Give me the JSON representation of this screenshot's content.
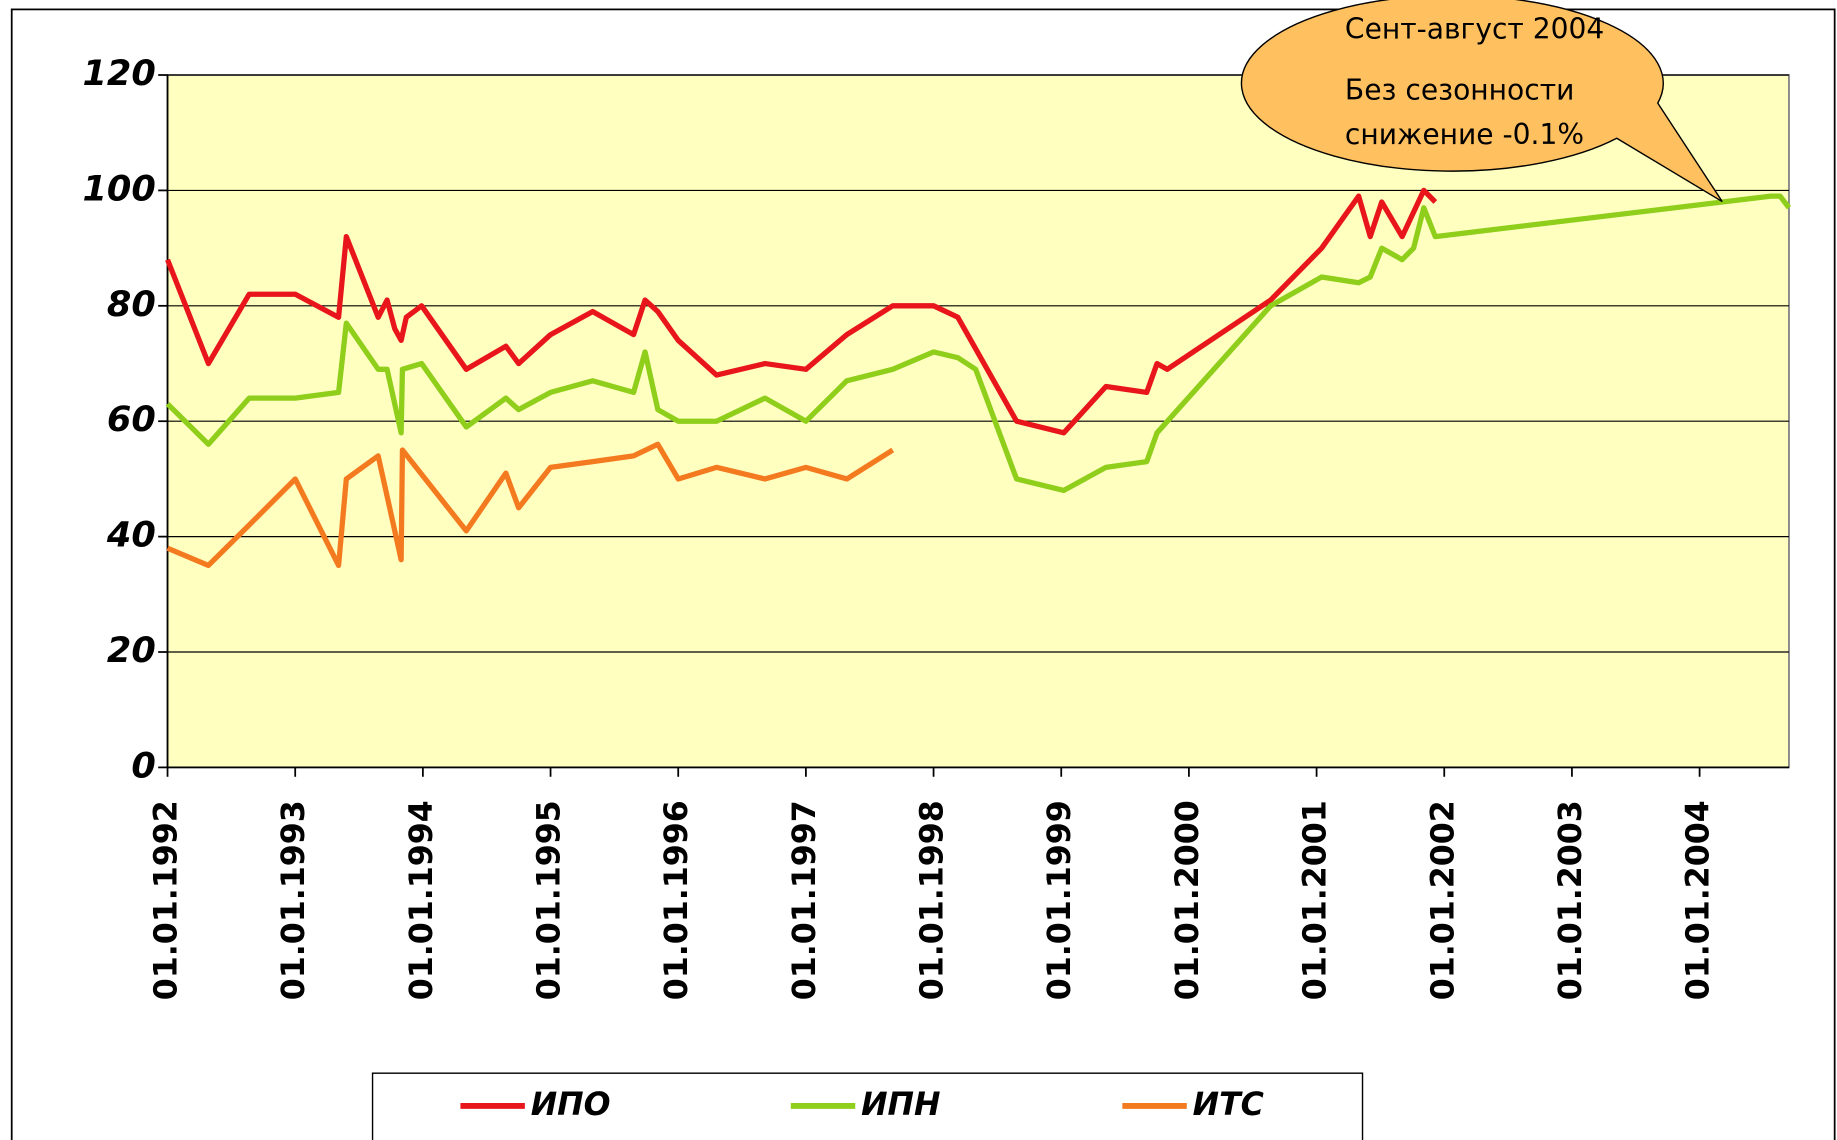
{
  "chart_data": {
    "type": "line",
    "annotation": [
      "Сент-август 2004",
      "Без сезонности",
      "снижение -0.1%"
    ],
    "xlim": [
      1992,
      2004.7
    ],
    "xticks": [
      {
        "value": 1992,
        "label": "01.01.1992"
      },
      {
        "value": 1993,
        "label": "01.01.1993"
      },
      {
        "value": 1994,
        "label": "01.01.1994"
      },
      {
        "value": 1995,
        "label": "01.01.1995"
      },
      {
        "value": 1996,
        "label": "01.01.1996"
      },
      {
        "value": 1997,
        "label": "01.01.1997"
      },
      {
        "value": 1998,
        "label": "01.01.1998"
      },
      {
        "value": 1999,
        "label": "01.01.1999"
      },
      {
        "value": 2000,
        "label": "01.01.2000"
      },
      {
        "value": 2001,
        "label": "01.01.2001"
      },
      {
        "value": 2002,
        "label": "01.01.2002"
      },
      {
        "value": 2003,
        "label": "01.01.2003"
      },
      {
        "value": 2004,
        "label": "01.01.2004"
      }
    ],
    "ylim": [
      0,
      120
    ],
    "yticks": [
      0,
      20,
      40,
      60,
      80,
      100,
      120
    ],
    "grid": true,
    "background": "#ffffc0",
    "series": [
      {
        "name": "ИПО",
        "color": "#e8161b",
        "x": [
          1992,
          1992.32,
          1992.64,
          1993,
          1993.34,
          1993.4,
          1993.65,
          1993.72,
          1993.78,
          1993.83,
          1993.87,
          1993.99,
          1994.34,
          1994.65,
          1994.75,
          1995,
          1995.33,
          1995.65,
          1995.74,
          1995.84,
          1996,
          1996.3,
          1996.68,
          1997,
          1997.32,
          1997.68,
          1998,
          1998.19,
          1998.65,
          1999.02,
          1999.35,
          1999.67,
          1999.75,
          1999.83,
          2000.64,
          2001.04,
          2001.33,
          2001.42,
          2001.51,
          2001.67,
          2001.84,
          2001.93
        ],
        "values": [
          88,
          70,
          82,
          82,
          78,
          92,
          78,
          81,
          76,
          74,
          78,
          80,
          69,
          73,
          70,
          75,
          79,
          75,
          81,
          79,
          74,
          68,
          70,
          69,
          75,
          80,
          80,
          78,
          60,
          58,
          66,
          65,
          70,
          69,
          81,
          90,
          99,
          92,
          98,
          92,
          100,
          98
        ]
      },
      {
        "name": "ИПН",
        "color": "#8fce1a",
        "x": [
          1992,
          1992.32,
          1992.64,
          1993,
          1993.34,
          1993.4,
          1993.65,
          1993.72,
          1993.83,
          1993.84,
          1993.99,
          1994.34,
          1994.65,
          1994.75,
          1995,
          1995.33,
          1995.65,
          1995.74,
          1995.84,
          1996,
          1996.3,
          1996.68,
          1997,
          1997.32,
          1997.68,
          1998,
          1998.19,
          1998.33,
          1998.65,
          1999.02,
          1999.35,
          1999.67,
          1999.75,
          2000.64,
          2001.04,
          2001.33,
          2001.42,
          2001.51,
          2001.67,
          2001.76,
          2001.84,
          2001.93,
          2004.56,
          2004.63,
          2004.7
        ],
        "values": [
          63,
          56,
          64,
          64,
          65,
          77,
          69,
          69,
          58,
          69,
          70,
          59,
          64,
          62,
          65,
          67,
          65,
          72,
          62,
          60,
          60,
          64,
          60,
          67,
          69,
          72,
          71,
          69,
          50,
          48,
          52,
          53,
          58,
          80,
          85,
          84,
          85,
          90,
          88,
          90,
          97,
          92,
          99,
          99,
          97
        ]
      },
      {
        "name": "ИТС",
        "color": "#f47a20",
        "x": [
          1992,
          1992.32,
          1992.64,
          1993,
          1993.34,
          1993.4,
          1993.65,
          1993.83,
          1993.84,
          1994.34,
          1994.65,
          1994.75,
          1995,
          1995.33,
          1995.65,
          1995.84,
          1996,
          1996.3,
          1996.68,
          1997,
          1997.32,
          1997.68
        ],
        "values": [
          38,
          35,
          42,
          50,
          35,
          50,
          54,
          36,
          55,
          41,
          51,
          45,
          52,
          53,
          54,
          56,
          50,
          52,
          50,
          52,
          50,
          55
        ]
      }
    ]
  }
}
